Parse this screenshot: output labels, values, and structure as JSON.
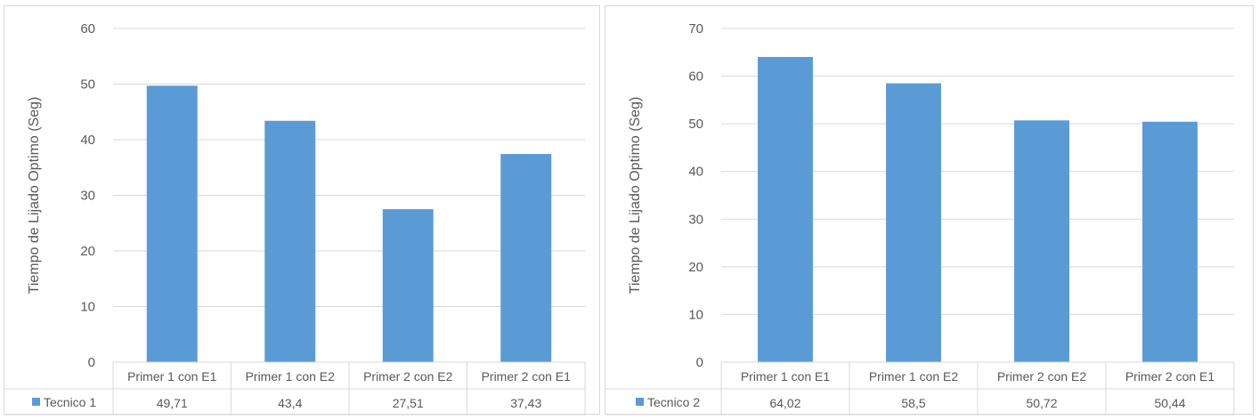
{
  "chart_data": [
    {
      "type": "bar",
      "categories": [
        "Primer 1 con E1",
        "Primer 1 con E2",
        "Primer 2 con E2",
        "Primer 2 con E1"
      ],
      "series": [
        {
          "name": "Tecnico 1",
          "values": [
            49.71,
            43.4,
            27.51,
            37.43
          ],
          "value_labels": [
            "49,71",
            "43,4",
            "27,51",
            "37,43"
          ]
        }
      ],
      "ylabel": "Tiempo de Lijado Optimo (Seg)",
      "ylim": [
        0,
        60
      ],
      "yticks": [
        0,
        10,
        20,
        30,
        40,
        50,
        60
      ],
      "grid": true,
      "data_table": true,
      "bar_color": "#5b9bd5"
    },
    {
      "type": "bar",
      "categories": [
        "Primer 1 con E1",
        "Primer 1 con E2",
        "Primer 2 con E2",
        "Primer 2 con E1"
      ],
      "series": [
        {
          "name": "Tecnico 2",
          "values": [
            64.02,
            58.5,
            50.72,
            50.44
          ],
          "value_labels": [
            "64,02",
            "58,5",
            "50,72",
            "50,44"
          ]
        }
      ],
      "ylabel": "Tiempo de Lijado Optimo (Seg)",
      "ylim": [
        0,
        70
      ],
      "yticks": [
        0,
        10,
        20,
        30,
        40,
        50,
        60,
        70
      ],
      "grid": true,
      "data_table": true,
      "bar_color": "#5b9bd5"
    }
  ]
}
